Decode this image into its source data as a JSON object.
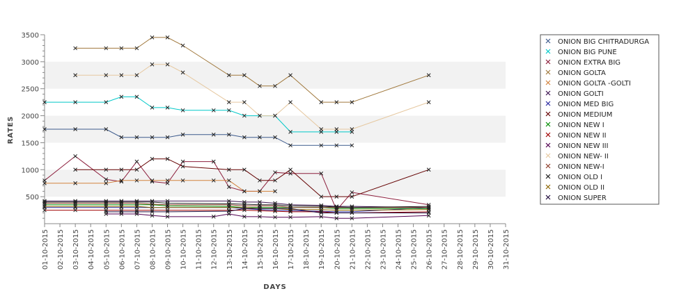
{
  "chart_data": {
    "type": "line",
    "xlabel": "DAYS",
    "ylabel": "RATES",
    "ylim": [
      0,
      3500
    ],
    "yticks": [
      500,
      1000,
      1500,
      2000,
      2500,
      3000,
      3500
    ],
    "grid": "alternating horizontal bands",
    "legend_position": "right",
    "categories": [
      "01-10-2015",
      "02-10-2015",
      "03-10-2015",
      "04-10-2015",
      "05-10-2015",
      "06-10-2015",
      "07-10-2015",
      "08-10-2015",
      "09-10-2015",
      "10-10-2015",
      "11-10-2015",
      "12-10-2015",
      "13-10-2015",
      "14-10-2015",
      "15-10-2015",
      "16-10-2015",
      "17-10-2015",
      "18-10-2015",
      "19-10-2015",
      "20-10-2015",
      "21-10-2015",
      "22-10-2015",
      "23-10-2015",
      "24-10-2015",
      "25-10-2015",
      "26-10-2015",
      "27-10-2015",
      "28-10-2015",
      "29-10-2015",
      "30-10-2015",
      "31-10-2015"
    ],
    "series": [
      {
        "name": "ONION BIG CHITRADURGA",
        "color": "#3c5a8c",
        "values": [
          1750,
          null,
          1750,
          null,
          1750,
          1600,
          1600,
          1600,
          1600,
          1650,
          null,
          1650,
          1650,
          1600,
          1600,
          1600,
          1450,
          null,
          1450,
          1450,
          1450,
          null,
          null,
          null,
          null,
          null,
          null,
          null,
          null,
          null,
          null
        ]
      },
      {
        "name": "ONION BIG PUNE",
        "color": "#00c8c8",
        "values": [
          2250,
          null,
          2250,
          null,
          2250,
          2350,
          2350,
          2150,
          2150,
          2100,
          null,
          2100,
          2100,
          2000,
          2000,
          2000,
          1700,
          null,
          1700,
          1700,
          1700,
          null,
          null,
          null,
          null,
          null,
          null,
          null,
          null,
          null,
          null
        ]
      },
      {
        "name": "ONION EXTRA BIG",
        "color": "#8c1e3c",
        "values": [
          800,
          null,
          1250,
          null,
          820,
          780,
          1150,
          780,
          750,
          1150,
          null,
          1150,
          680,
          600,
          600,
          950,
          930,
          null,
          930,
          250,
          580,
          null,
          null,
          null,
          null,
          350,
          null,
          null,
          null,
          null,
          null
        ]
      },
      {
        "name": "ONION GOLTA",
        "color": "#a0783c",
        "values": [
          null,
          null,
          3250,
          null,
          3250,
          3250,
          3250,
          3450,
          3450,
          3300,
          null,
          null,
          2750,
          2750,
          2550,
          2550,
          2750,
          null,
          2250,
          2250,
          2250,
          null,
          null,
          null,
          null,
          2750,
          null,
          null,
          null,
          null,
          null
        ]
      },
      {
        "name": "ONION GOLTA -GOLTI",
        "color": "#d2823c",
        "values": [
          750,
          null,
          750,
          null,
          750,
          800,
          800,
          800,
          800,
          800,
          null,
          800,
          800,
          600,
          600,
          600,
          null,
          null,
          null,
          null,
          null,
          null,
          null,
          null,
          null,
          null,
          null,
          null,
          null,
          null,
          null
        ]
      },
      {
        "name": "ONION GOLTI",
        "color": "#3c1450",
        "values": [
          420,
          null,
          420,
          null,
          420,
          420,
          420,
          420,
          420,
          null,
          null,
          null,
          420,
          400,
          400,
          380,
          350,
          null,
          340,
          320,
          320,
          null,
          null,
          null,
          null,
          300,
          null,
          null,
          null,
          null,
          null
        ]
      },
      {
        "name": "ONION MED BIG",
        "color": "#2828a0",
        "values": [
          300,
          null,
          300,
          null,
          300,
          300,
          300,
          300,
          300,
          null,
          null,
          null,
          300,
          280,
          260,
          250,
          240,
          null,
          230,
          220,
          220,
          null,
          null,
          null,
          null,
          300,
          null,
          null,
          null,
          null,
          null
        ]
      },
      {
        "name": "ONION MEDIUM",
        "color": "#640000",
        "values": [
          null,
          null,
          1000,
          null,
          1000,
          1000,
          1000,
          1200,
          1200,
          1060,
          null,
          null,
          1000,
          1000,
          800,
          800,
          1000,
          null,
          500,
          500,
          500,
          null,
          null,
          null,
          null,
          1000,
          null,
          null,
          null,
          null,
          null
        ]
      },
      {
        "name": "ONION NEW I",
        "color": "#008c00",
        "values": [
          350,
          null,
          350,
          null,
          350,
          350,
          350,
          350,
          330,
          null,
          null,
          null,
          320,
          300,
          300,
          300,
          300,
          null,
          300,
          280,
          280,
          null,
          null,
          null,
          null,
          280,
          null,
          null,
          null,
          null,
          null
        ]
      },
      {
        "name": "ONION NEW II",
        "color": "#a00000",
        "values": [
          250,
          null,
          250,
          null,
          250,
          250,
          250,
          250,
          250,
          null,
          null,
          null,
          250,
          250,
          240,
          230,
          220,
          null,
          220,
          200,
          200,
          null,
          null,
          null,
          null,
          220,
          null,
          null,
          null,
          null,
          null
        ]
      },
      {
        "name": "ONION NEW III",
        "color": "#500050",
        "values": [
          null,
          null,
          null,
          null,
          180,
          180,
          180,
          150,
          130,
          null,
          null,
          130,
          180,
          130,
          130,
          120,
          120,
          null,
          130,
          100,
          100,
          null,
          null,
          null,
          null,
          150,
          null,
          null,
          null,
          null,
          null
        ]
      },
      {
        "name": "ONION NEW- II",
        "color": "#e6c8a0",
        "values": [
          null,
          null,
          2750,
          null,
          2750,
          2750,
          2750,
          2950,
          2950,
          2800,
          null,
          null,
          2250,
          2250,
          2000,
          2000,
          2250,
          null,
          1750,
          1750,
          1750,
          null,
          null,
          null,
          null,
          2250,
          null,
          null,
          null,
          null,
          null
        ]
      },
      {
        "name": "ONION NEW-I",
        "color": "#8c3c28",
        "values": [
          380,
          null,
          380,
          null,
          380,
          380,
          380,
          360,
          350,
          null,
          null,
          null,
          350,
          330,
          330,
          330,
          300,
          null,
          300,
          300,
          300,
          null,
          null,
          null,
          null,
          300,
          null,
          null,
          null,
          null,
          null
        ]
      },
      {
        "name": "ONION OLD I",
        "color": "#1e1e1e",
        "values": [
          400,
          null,
          400,
          null,
          400,
          400,
          400,
          400,
          380,
          null,
          null,
          null,
          370,
          360,
          350,
          350,
          330,
          null,
          320,
          310,
          300,
          null,
          null,
          null,
          null,
          320,
          null,
          null,
          null,
          null,
          null
        ]
      },
      {
        "name": "ONION OLD II",
        "color": "#8c6400",
        "values": [
          320,
          null,
          320,
          null,
          320,
          320,
          320,
          300,
          300,
          null,
          null,
          null,
          300,
          300,
          280,
          280,
          260,
          null,
          260,
          250,
          250,
          null,
          null,
          null,
          null,
          260,
          null,
          null,
          null,
          null,
          null
        ]
      },
      {
        "name": "ONION SUPER",
        "color": "#1e0a3c",
        "values": [
          null,
          null,
          null,
          null,
          220,
          220,
          220,
          220,
          220,
          null,
          null,
          null,
          230,
          280,
          280,
          280,
          280,
          null,
          200,
          200,
          200,
          null,
          null,
          null,
          null,
          200,
          null,
          null,
          null,
          null,
          null
        ]
      }
    ]
  }
}
